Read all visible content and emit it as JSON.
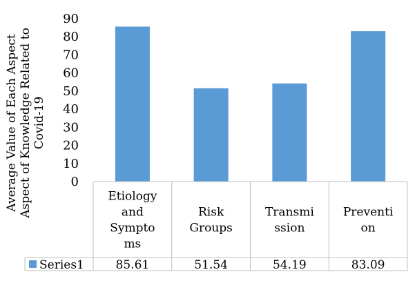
{
  "chart_data": {
    "type": "bar",
    "ylabel": [
      "Average Value of Each Aspect",
      "Aspect of Knowledge Related to",
      "Covid-19"
    ],
    "categories": [
      [
        "Etiology",
        "and",
        "Sympto",
        "ms"
      ],
      [
        "Risk",
        "Groups"
      ],
      [
        "Transmi",
        "ssion"
      ],
      [
        "Preventi",
        "on"
      ]
    ],
    "series": [
      {
        "name": "Series1",
        "values": [
          85.61,
          51.54,
          54.19,
          83.09
        ],
        "value_labels": [
          "85.61",
          "51.54",
          "54.19",
          "83.09"
        ]
      }
    ],
    "ylim": [
      0,
      90
    ],
    "yticks": [
      0,
      10,
      20,
      30,
      40,
      50,
      60,
      70,
      80,
      90
    ],
    "grid": false,
    "data_table": true,
    "colors": {
      "bar": "#5B9BD5",
      "axis": "#bfbfbf"
    }
  }
}
